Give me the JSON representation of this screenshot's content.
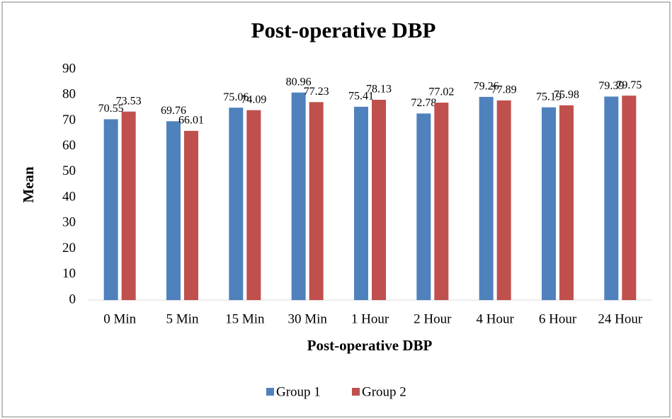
{
  "chart_data": {
    "type": "bar",
    "title": "Post-operative DBP",
    "x_label": "Post-operative DBP",
    "y_label": "Mean",
    "categories": [
      "0 Min",
      "5 Min",
      "15 Min",
      "30 Min",
      "1 Hour",
      "2 Hour",
      "4 Hour",
      "6 Hour",
      "24 Hour"
    ],
    "series": [
      {
        "name": "Group 1",
        "color": "#4f81bd",
        "values": [
          70.55,
          69.76,
          75.06,
          80.96,
          75.41,
          72.78,
          79.26,
          75.19,
          79.39
        ]
      },
      {
        "name": "Group 2",
        "color": "#c0504d",
        "values": [
          73.53,
          66.01,
          74.09,
          77.23,
          78.13,
          77.02,
          77.89,
          75.98,
          79.75
        ]
      }
    ],
    "ylim": [
      0,
      90
    ],
    "yticks": [
      0,
      10,
      20,
      30,
      40,
      50,
      60,
      70,
      80,
      90
    ],
    "grid": false,
    "legend": "bottom"
  }
}
